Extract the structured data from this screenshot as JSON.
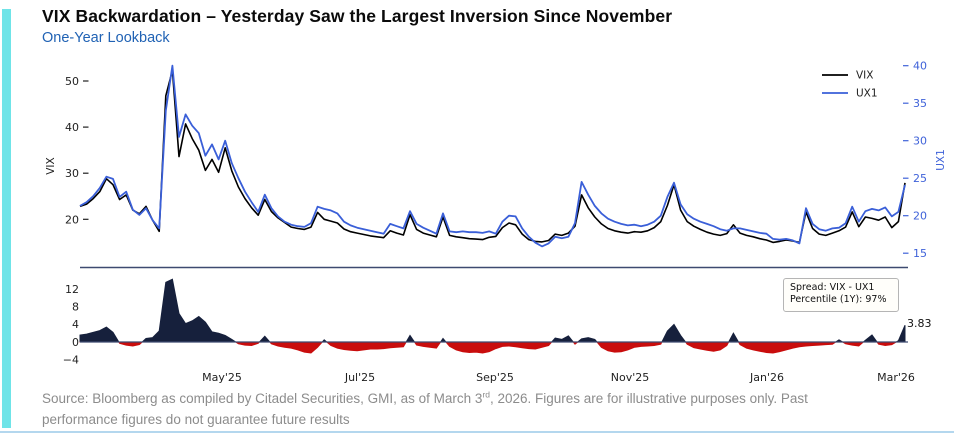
{
  "header": {
    "title": "VIX Backwardation – Yesterday Saw the Largest Inversion Since November",
    "subtitle": "One-Year Lookback"
  },
  "footer": {
    "line1_pre": "Source: Bloomberg as compiled by Citadel Securities, GMI, as of March 3",
    "line1_sup": "rd",
    "line1_post": ", 2026. Figures are for illustrative purposes only. Past",
    "line2": "performance figures do not guarantee future results"
  },
  "colors": {
    "vix_line": "#000000",
    "ux1_line": "#3a5fd8",
    "right_axis_blue": "#3f62d9",
    "accent_blue": "#2062b4",
    "spread_pos": "#16203c",
    "spread_neg": "#c90d0d",
    "axis_navy": "#3d4a70",
    "tick_text": "#1f1f1f",
    "teal_bar": "#6fe4e8",
    "bottom_rule": "#b4d7ee"
  },
  "chart_data": {
    "type": "line",
    "x_range_note": "Mar 2025 to Mar 2026, 126 evenly spaced points",
    "x_tick_labels": [
      "May'25",
      "Jul'25",
      "Sep'25",
      "Nov'25",
      "Jan'26",
      "Mar'26"
    ],
    "top_panel": {
      "left_axis": {
        "label": "VIX",
        "ticks": [
          20,
          30,
          40,
          50
        ]
      },
      "right_axis": {
        "label": "UX1",
        "ticks": [
          15,
          20,
          25,
          30,
          35,
          40
        ]
      },
      "legend": [
        "VIX",
        "UX1"
      ],
      "series": [
        {
          "name": "VIX",
          "axis": "left",
          "values": [
            22.8,
            23.3,
            24.5,
            26,
            28.8,
            27.5,
            24.3,
            25.3,
            22,
            21.2,
            22.8,
            19.8,
            17.4,
            46.8,
            52.3,
            33.6,
            40.7,
            37.5,
            35,
            30.6,
            33,
            30.2,
            35.5,
            30.5,
            27,
            24.5,
            22.5,
            20.9,
            24.3,
            21.7,
            20.3,
            19.3,
            18.3,
            18,
            17.8,
            18.3,
            21.5,
            20,
            19.6,
            19.2,
            17.9,
            17.3,
            17,
            16.7,
            16.4,
            16.2,
            16,
            17.5,
            17,
            16.6,
            21,
            17.8,
            17,
            16.6,
            16.2,
            20.5,
            16.5,
            16.2,
            16,
            15.8,
            15.7,
            15.6,
            16.1,
            16.3,
            18.2,
            19.2,
            18.8,
            16.8,
            15.6,
            15.2,
            15.1,
            15.4,
            16.8,
            16.5,
            17,
            18.5,
            25.3,
            22.5,
            20.5,
            19,
            18,
            17.5,
            17.2,
            17,
            17.3,
            17.2,
            17.5,
            18.2,
            19.5,
            23,
            27.5,
            22,
            19.5,
            18.5,
            17.8,
            17.2,
            16.8,
            16.5,
            16.9,
            18.8,
            17,
            16.5,
            16.2,
            15.8,
            15.5,
            15,
            15.2,
            15.5,
            15.3,
            15,
            21.6,
            18,
            16.8,
            16.5,
            17,
            17.5,
            18.3,
            21.6,
            18.4,
            20.5,
            20.2,
            19.8,
            20.5,
            18.2,
            19.5,
            27.9
          ]
        },
        {
          "name": "UX1",
          "axis": "right",
          "values": [
            21.3,
            21.8,
            22.6,
            23.7,
            25.2,
            24.9,
            22.5,
            23.2,
            20.8,
            20.1,
            21,
            19.4,
            18.3,
            34,
            40,
            30.5,
            33.5,
            32,
            31,
            28,
            29.5,
            27.5,
            30,
            27,
            25,
            23.2,
            21.8,
            20.5,
            22.8,
            21,
            19.9,
            19.2,
            18.8,
            18.6,
            18.5,
            19,
            21.2,
            20.9,
            20.7,
            20.3,
            19.2,
            18.7,
            18.4,
            18.2,
            18,
            17.8,
            17.6,
            18.9,
            18.6,
            18.3,
            20.6,
            18.9,
            18.4,
            18,
            17.6,
            20.3,
            17.9,
            17.8,
            17.9,
            17.8,
            17.8,
            17.7,
            17.9,
            17.6,
            19.2,
            20,
            19.9,
            18.3,
            17.2,
            16.4,
            15.9,
            16.3,
            17.2,
            17,
            17.2,
            19,
            24.5,
            22.8,
            21.3,
            20.3,
            19.6,
            19.2,
            18.9,
            18.7,
            18.8,
            18.6,
            18.8,
            19.2,
            20,
            22.5,
            24.4,
            21.5,
            20.2,
            19.6,
            19.2,
            18.9,
            18.6,
            18.2,
            18,
            18.3,
            18.3,
            18.1,
            17.9,
            17.7,
            17.6,
            16.9,
            16.8,
            16.9,
            16.7,
            16.3,
            21,
            18.9,
            18.2,
            18,
            18.3,
            18.4,
            19,
            21.2,
            19.2,
            20.6,
            20.9,
            20.7,
            21.1,
            19.9,
            20.5,
            24.1
          ]
        }
      ]
    },
    "bottom_panel": {
      "left_ticks": [
        -4,
        0,
        4,
        8,
        12
      ],
      "series_name": "Spread (VIX - UX1)",
      "annotation_line1": "Spread: VIX - UX1",
      "annotation_line2": "Percentile (1Y): 97%",
      "last_value_label": "3.83",
      "values": [
        1.6,
        1.8,
        2.2,
        2.6,
        3.4,
        2.2,
        -0.3,
        -0.7,
        -0.9,
        -0.6,
        0.8,
        1,
        2.5,
        13.6,
        14.3,
        6.5,
        4.2,
        4.8,
        5.8,
        4.5,
        2.3,
        2,
        1.5,
        0.6,
        -0.4,
        -0.7,
        -0.8,
        -0.3,
        1.3,
        -0.4,
        -0.9,
        -1.2,
        -1.4,
        -1.8,
        -2.3,
        -2.5,
        -1.2,
        0.5,
        -0.8,
        -1.4,
        -1.7,
        -1.9,
        -2,
        -1.8,
        -1.6,
        -1.6,
        -1.5,
        -1.3,
        -1.2,
        -1.1,
        1.5,
        -0.7,
        -1,
        -1.2,
        -1.4,
        0.8,
        -1,
        -1.8,
        -2.2,
        -2.4,
        -2.3,
        -2.5,
        -2.2,
        -1.5,
        -1,
        -0.9,
        -1.1,
        -1.3,
        -1.5,
        -1.6,
        -1.2,
        -0.8,
        0.9,
        0.6,
        1.4,
        -0.5,
        0.7,
        1,
        0.6,
        -1.2,
        -2,
        -2.3,
        -2.2,
        -1.8,
        -1.2,
        -1,
        -0.9,
        -0.8,
        -0.5,
        2.5,
        4,
        1.5,
        -0.5,
        -1.3,
        -1.6,
        -1.9,
        -2.1,
        -1.8,
        -0.8,
        2,
        -0.6,
        -1.4,
        -1.8,
        -2.1,
        -2.4,
        -2.5,
        -2.2,
        -1.8,
        -1.4,
        -1.1,
        -0.9,
        -0.8,
        -0.7,
        -0.6,
        -0.5,
        0.5,
        -0.4,
        -0.7,
        -0.9,
        0.4,
        1.6,
        -0.5,
        -0.8,
        -0.6,
        0.3,
        3.83
      ]
    }
  }
}
